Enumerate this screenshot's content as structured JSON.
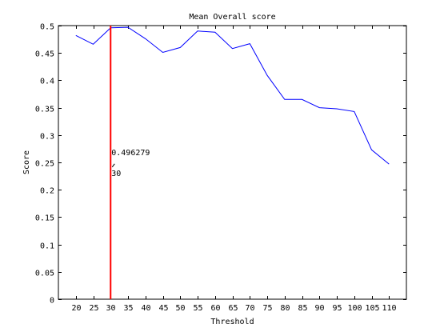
{
  "colors": {
    "series_line": "#0000ff",
    "marker_line": "#ff0000",
    "axis": "#000000",
    "background": "#ffffff"
  },
  "chart_data": {
    "type": "line",
    "title": "Mean Overall score",
    "xlabel": "Threshold",
    "ylabel": "Score",
    "xlim": [
      15,
      115
    ],
    "ylim": [
      0,
      0.5
    ],
    "xticks": [
      20,
      25,
      30,
      35,
      40,
      45,
      50,
      55,
      60,
      65,
      70,
      75,
      80,
      85,
      90,
      95,
      100,
      105,
      110
    ],
    "xtick_labels": [
      "20",
      "25",
      "30",
      "35",
      "40",
      "45",
      "50",
      "55",
      "60",
      "65",
      "70",
      "75",
      "80",
      "85",
      "90",
      "95",
      "100",
      "105",
      "110"
    ],
    "yticks": [
      0,
      0.05,
      0.1,
      0.15,
      0.2,
      0.25,
      0.3,
      0.35,
      0.4,
      0.45,
      0.5
    ],
    "ytick_labels": [
      "0",
      "0.05",
      "0.1",
      "0.15",
      "0.2",
      "0.25",
      "0.3",
      "0.35",
      "0.4",
      "0.45",
      "0.5"
    ],
    "grid": false,
    "series": [
      {
        "x": [
          20,
          25,
          30,
          35,
          40,
          45,
          50,
          55,
          60,
          65,
          70,
          75,
          80,
          85,
          90,
          95,
          100,
          105,
          110
        ],
        "y": [
          0.482,
          0.466,
          0.496,
          0.497,
          0.476,
          0.451,
          0.46,
          0.49,
          0.488,
          0.458,
          0.467,
          0.409,
          0.365,
          0.365,
          0.35,
          0.348,
          0.343,
          0.273,
          0.247
        ]
      }
    ],
    "marker": {
      "x": 30,
      "value_label": "0.496279",
      "x_label": "30",
      "label_y": 0.24
    }
  }
}
